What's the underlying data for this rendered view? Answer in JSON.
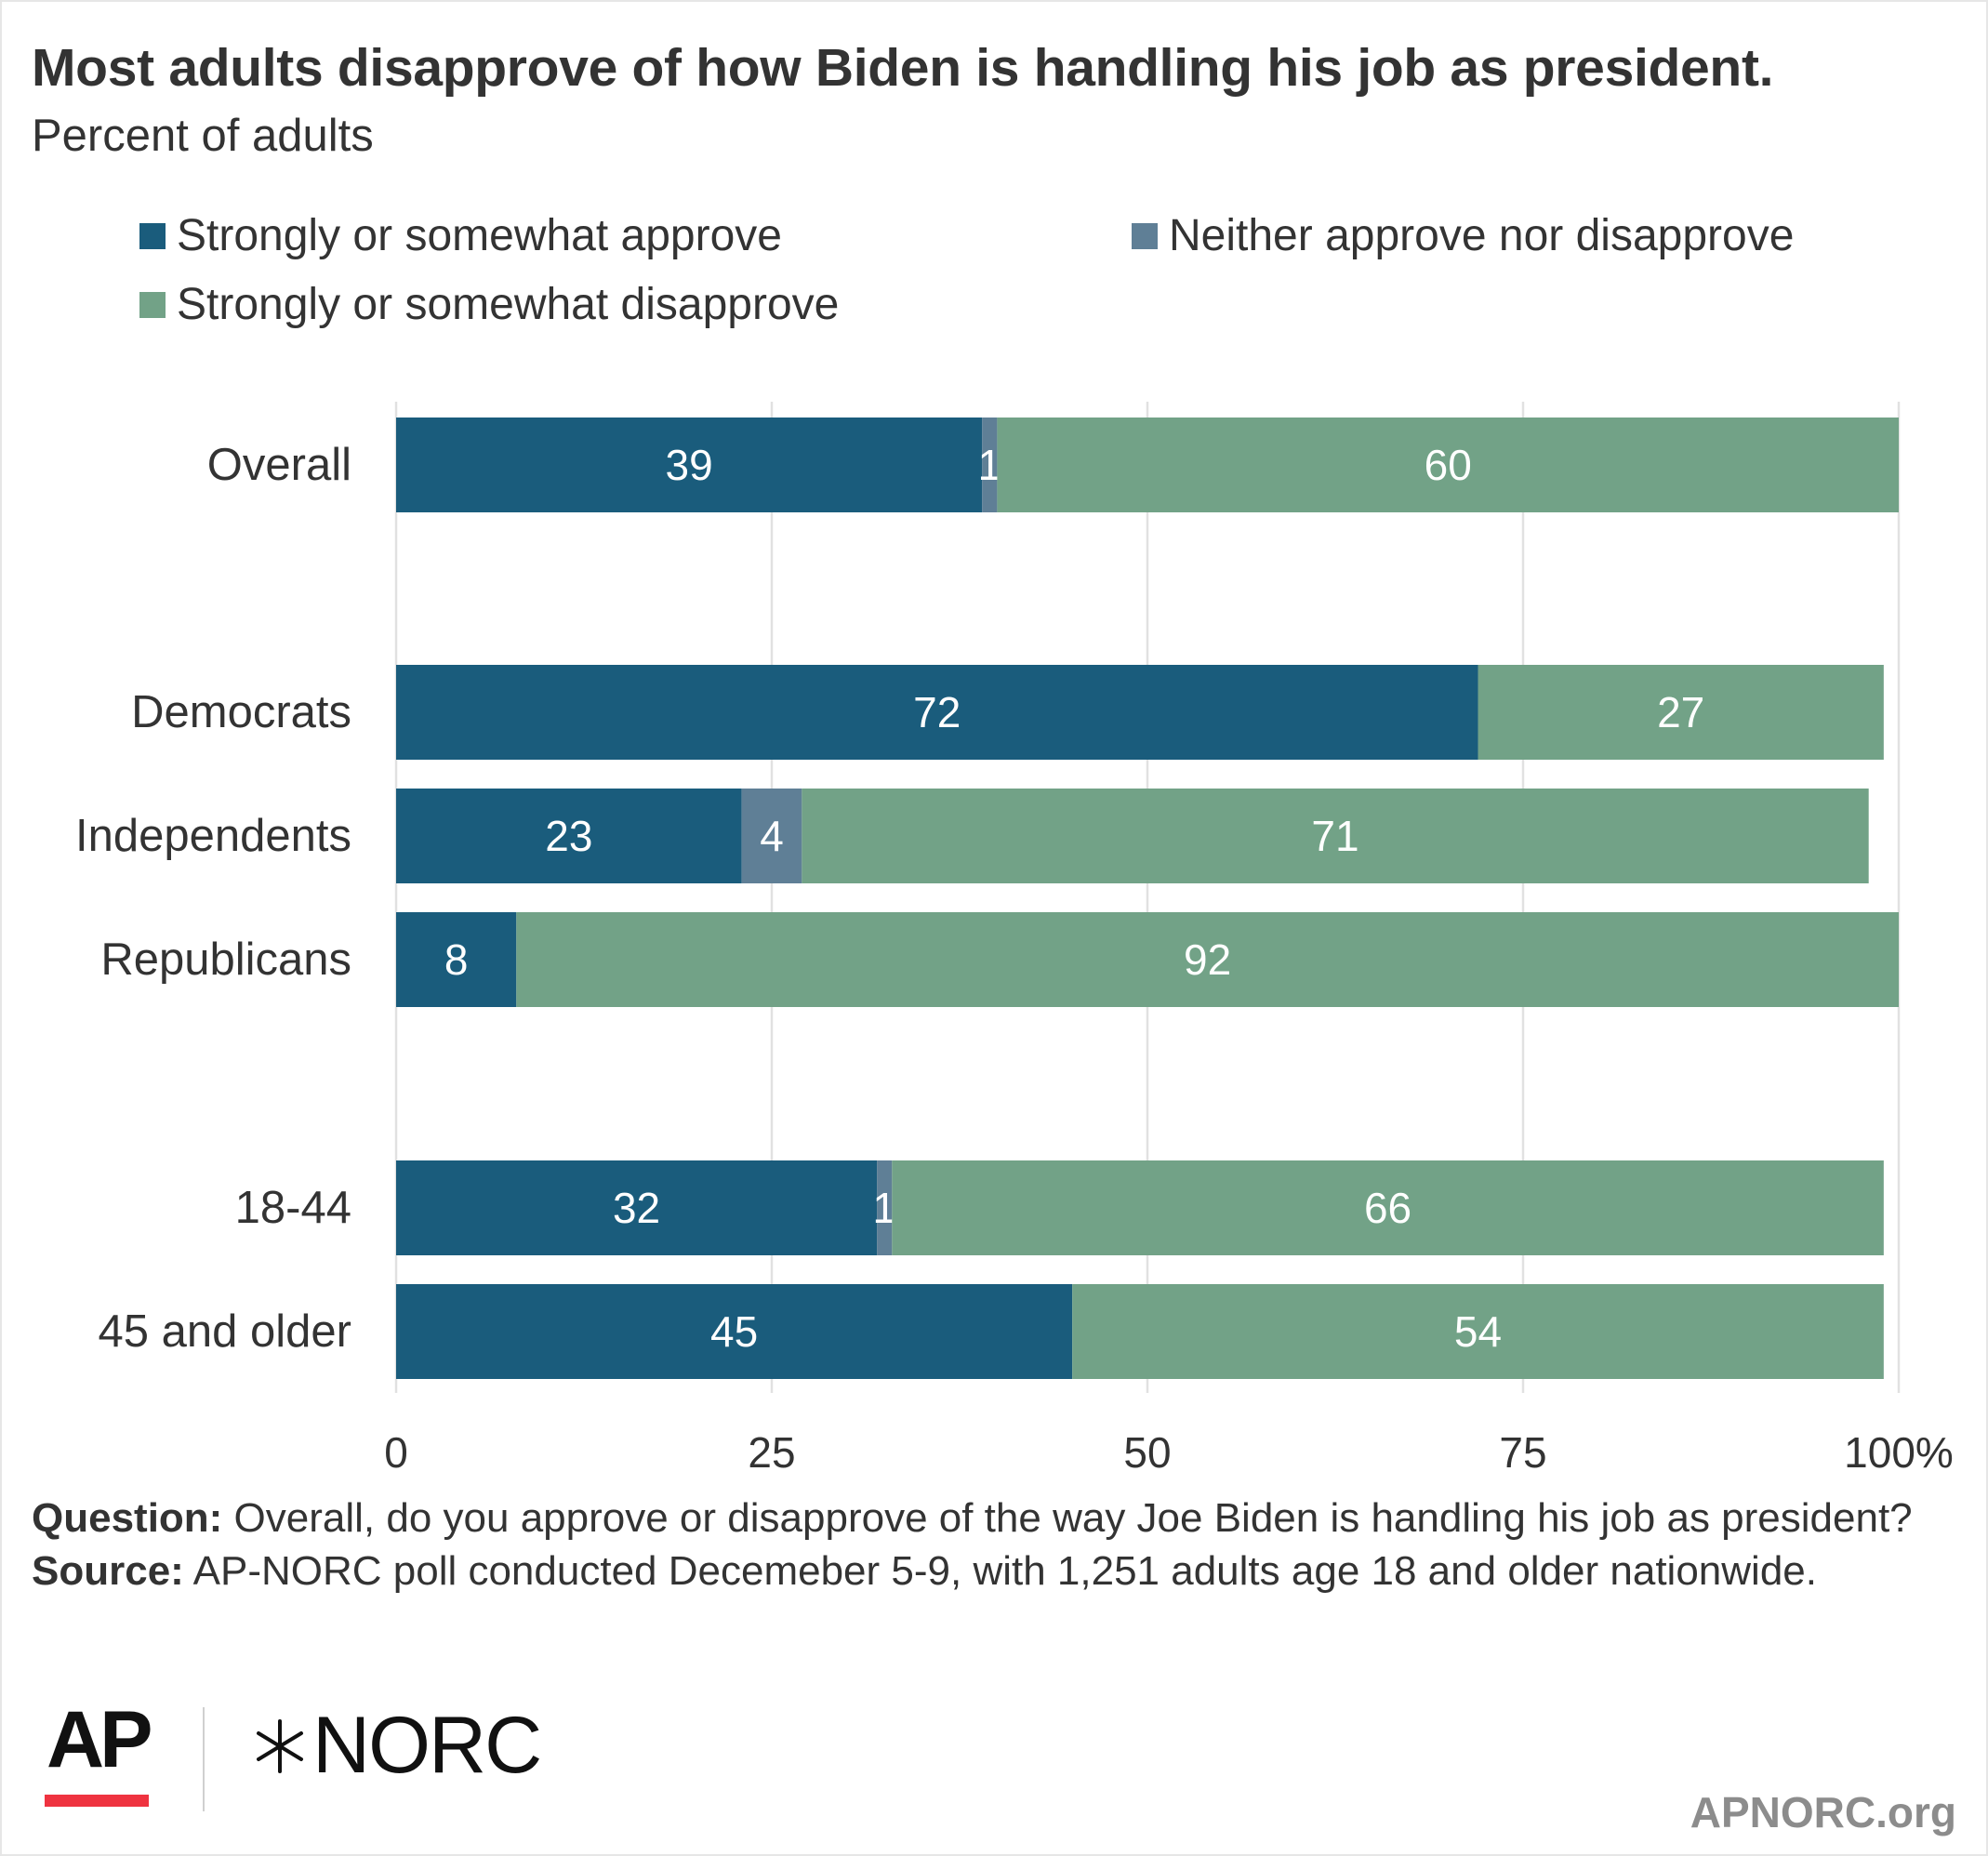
{
  "header": {
    "title": "Most adults disapprove of how Biden is handling his job as president.",
    "subtitle": "Percent of adults"
  },
  "colors": {
    "approve": "#1a5c7c",
    "neither": "#5f7f96",
    "disapprove": "#72a287",
    "grid": "#e1e1e1",
    "text": "#333333",
    "ap_red": "#ef3340",
    "site": "#8c8c8c"
  },
  "legend": [
    {
      "label": "Strongly or somewhat approve",
      "color_key": "approve"
    },
    {
      "label": "Neither approve nor disapprove",
      "color_key": "neither"
    },
    {
      "label": "Strongly or somewhat disapprove",
      "color_key": "disapprove"
    }
  ],
  "chart_data": {
    "type": "bar",
    "orientation": "horizontal",
    "stacked": true,
    "title": "Most adults disapprove of how Biden is handling his job as president.",
    "subtitle": "Percent of adults",
    "categories": [
      "Overall",
      "Democrats",
      "Independents",
      "Republicans",
      "18-44",
      "45 and older"
    ],
    "groups": [
      [
        "Overall"
      ],
      [
        "Democrats",
        "Independents",
        "Republicans"
      ],
      [
        "18-44",
        "45 and older"
      ]
    ],
    "series": [
      {
        "name": "Strongly or somewhat approve",
        "values": [
          39,
          72,
          23,
          8,
          32,
          45
        ]
      },
      {
        "name": "Neither approve nor disapprove",
        "values": [
          1,
          0,
          4,
          0,
          1,
          0
        ]
      },
      {
        "name": "Strongly or somewhat disapprove",
        "values": [
          60,
          27,
          71,
          92,
          66,
          54
        ]
      }
    ],
    "data_labels": [
      [
        "39",
        "72",
        "23",
        "8",
        "32",
        "45"
      ],
      [
        "1",
        "",
        "4",
        "",
        "1",
        ""
      ],
      [
        "60",
        "27",
        "71",
        "92",
        "66",
        "54"
      ]
    ],
    "xlim": [
      0,
      100
    ],
    "xticks": [
      0,
      25,
      50,
      75,
      100
    ],
    "xtick_labels": [
      "0",
      "25",
      "50",
      "75",
      "100%"
    ],
    "xlabel": "",
    "ylabel": "",
    "grid": "vertical",
    "legend_position": "top"
  },
  "footnote": {
    "question_label": "Question:",
    "question_text": " Overall, do you approve or disapprove of the way Joe Biden is handling his job as president?",
    "source_label": "Source:",
    "source_text": " AP-NORC poll conducted Decemeber 5-9, with 1,251 adults age 18 and older nationwide."
  },
  "branding": {
    "ap_logo": "AP",
    "norc_logo": "NORC",
    "norc_mark_icon": "star-burst-icon",
    "site": "APNORC.org"
  }
}
